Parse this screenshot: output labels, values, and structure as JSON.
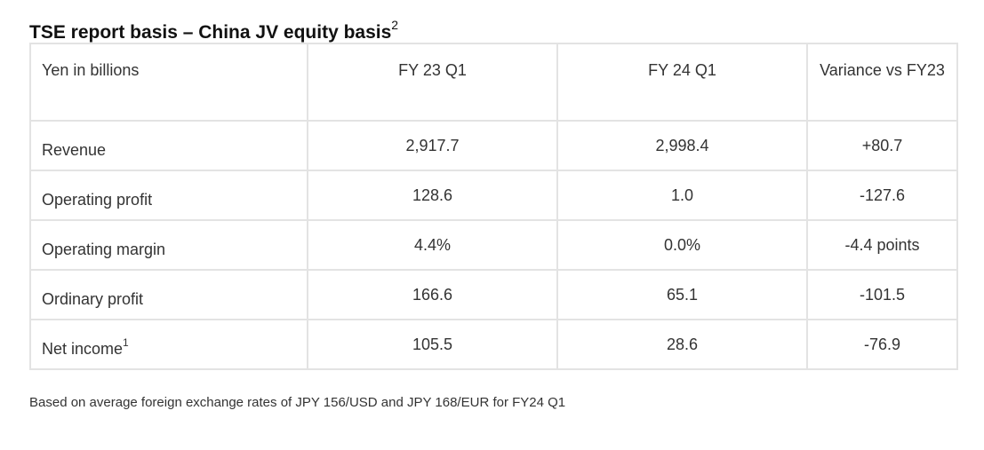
{
  "title": {
    "text": "TSE report basis – China JV equity basis",
    "sup": "2"
  },
  "table": {
    "headers": [
      "Yen in billions",
      "FY 23 Q1",
      "FY 24 Q1",
      "Variance vs FY23"
    ],
    "rows": [
      {
        "label": "Revenue",
        "sup": "",
        "fy23q1": "2,917.7",
        "fy24q1": "2,998.4",
        "variance": "+80.7"
      },
      {
        "label": "Operating profit",
        "sup": "",
        "fy23q1": "128.6",
        "fy24q1": "1.0",
        "variance": "-127.6"
      },
      {
        "label": "Operating margin",
        "sup": "",
        "fy23q1": "4.4%",
        "fy24q1": "0.0%",
        "variance": "-4.4 points"
      },
      {
        "label": "Ordinary profit",
        "sup": "",
        "fy23q1": "166.6",
        "fy24q1": "65.1",
        "variance": "-101.5"
      },
      {
        "label": "Net income",
        "sup": "1",
        "fy23q1": "105.5",
        "fy24q1": "28.6",
        "variance": "-76.9"
      }
    ]
  },
  "footnote": "Based on average foreign exchange rates of JPY 156/USD and JPY 168/EUR for FY24 Q1"
}
